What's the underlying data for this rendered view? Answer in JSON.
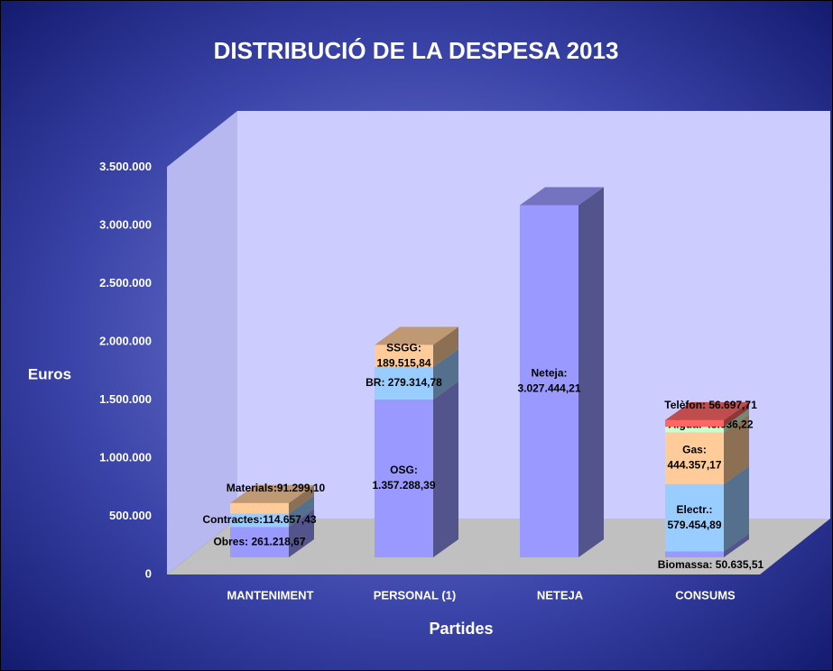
{
  "chart_data": {
    "type": "bar",
    "stacked": true,
    "title": "DISTRIBUCIÓ DE LA DESPESA 2013",
    "ylabel": "Euros",
    "xlabel": "Partides",
    "categories": [
      "MANTENIMENT",
      "PERSONAL (1)",
      "NETEJA",
      "CONSUMS"
    ],
    "ylim": [
      0,
      3500000
    ],
    "yticks": [
      0,
      {
        "value": 500000,
        "label": "500.000"
      },
      {
        "value": 1000000,
        "label": "1.000.000"
      },
      {
        "value": 1500000,
        "label": "1.500.000"
      },
      {
        "value": 2000000,
        "label": "2.000.000"
      },
      {
        "value": 2500000,
        "label": "2.500.000"
      },
      {
        "value": 3000000,
        "label": "3.000.000"
      },
      {
        "value": 3500000,
        "label": "3.500.000"
      }
    ],
    "stacks": [
      [
        {
          "value": 261218.67,
          "value_label": [
            "Obres: 261.218,67"
          ],
          "color": "#9999ff"
        },
        {
          "value": 114657.43,
          "value_label": [
            "Contractes:114.657,43"
          ],
          "color": "#99ccff"
        },
        {
          "value": 91299.1,
          "value_label": [
            "Materials:91.299,10"
          ],
          "color": "#ffcc99"
        }
      ],
      [
        {
          "value": 1357288.39,
          "value_label": [
            "OSG:",
            "1.357.288,39"
          ],
          "color": "#9999ff"
        },
        {
          "value": 279314.78,
          "value_label": [
            "BR: 279.314,78"
          ],
          "color": "#99ccff"
        },
        {
          "value": 189515.84,
          "value_label": [
            "SSGG:",
            "189.515,84"
          ],
          "color": "#ffcc99"
        }
      ],
      [
        {
          "value": 3027444.21,
          "value_label": [
            "Neteja:",
            "3.027.444,21"
          ],
          "color": "#9999ff"
        }
      ],
      [
        {
          "value": 50635.51,
          "value_label": [
            "Biomassa: 50.635,51"
          ],
          "color": "#9999ff"
        },
        {
          "value": 579454.89,
          "value_label": [
            "Electr.:",
            "579.454,89"
          ],
          "color": "#99ccff"
        },
        {
          "value": 444357.17,
          "value_label": [
            "Gas:",
            "444.357,17"
          ],
          "color": "#ffcc99"
        },
        {
          "value": 48036.22,
          "value_label": [
            "Aigua: 48.036,22"
          ],
          "color": "#ccffcc"
        },
        {
          "value": 56697.71,
          "value_label": [
            "Telèfon: 56.697,71"
          ],
          "color": "#ff6666"
        }
      ]
    ]
  }
}
